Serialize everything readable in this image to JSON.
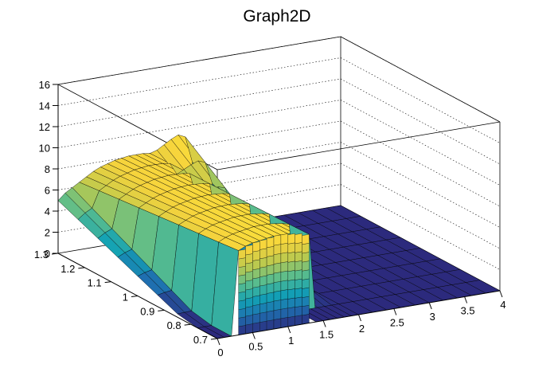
{
  "chart_data": {
    "type": "surface",
    "title": "Graph2D",
    "xlabel": "",
    "ylabel": "",
    "zlabel": "",
    "xlim": [
      0,
      4
    ],
    "ylim": [
      0.7,
      1.3
    ],
    "zlim": [
      0,
      16
    ],
    "grid": true,
    "colorscale": [
      "#2c2a7d",
      "#1f6fb0",
      "#12a2b5",
      "#5bbd8c",
      "#b9c94f",
      "#f6d33c",
      "#fbe53a"
    ],
    "x_ticks": [
      "0",
      "0.5",
      "1",
      "1.5",
      "2",
      "2.5",
      "3",
      "3.5",
      "4"
    ],
    "y_ticks": [
      "0.7",
      "0.8",
      "0.9",
      "1",
      "1.1",
      "1.2",
      "1.3"
    ],
    "z_ticks": [
      "0",
      "2",
      "4",
      "6",
      "8",
      "10",
      "12",
      "14",
      "16"
    ],
    "profile_description": "Surface ~8 between x=0.3 and 1.8, falling to 0 between x=1.4 and 1.8 in front, 0 for x above 1.9",
    "x_samples": [
      0.0,
      0.1,
      0.2,
      0.3,
      0.4,
      0.5,
      0.6,
      0.7,
      0.8,
      0.9,
      1.0,
      1.1,
      1.2,
      1.3,
      1.4,
      1.5,
      1.6,
      1.7,
      1.8,
      1.9,
      2.0,
      2.2,
      2.4,
      2.6,
      2.8,
      3.0,
      3.2,
      3.4,
      3.6,
      3.8,
      4.0
    ],
    "z_back_profile": [
      5.0,
      5.6,
      6.0,
      6.4,
      6.8,
      7.2,
      7.5,
      7.7,
      7.9,
      8.0,
      8.1,
      8.1,
      8.1,
      8.0,
      8.2,
      8.6,
      9.0,
      9.3,
      9.0,
      6.5,
      0.0,
      0.0,
      0.0,
      0.0,
      0.0,
      0.0,
      0.0,
      0.0,
      0.0,
      0.0,
      0.0
    ],
    "z_front_profile": [
      0.0,
      0.0,
      0.0,
      8.0,
      8.3,
      8.5,
      8.6,
      8.7,
      8.8,
      8.8,
      8.8,
      8.7,
      8.6,
      8.4,
      0.0,
      0.0,
      0.0,
      0.0,
      0.0,
      0.0,
      0.0,
      0.0,
      0.0,
      0.0,
      0.0,
      0.0,
      0.0,
      0.0,
      0.0,
      0.0,
      0.0
    ]
  }
}
